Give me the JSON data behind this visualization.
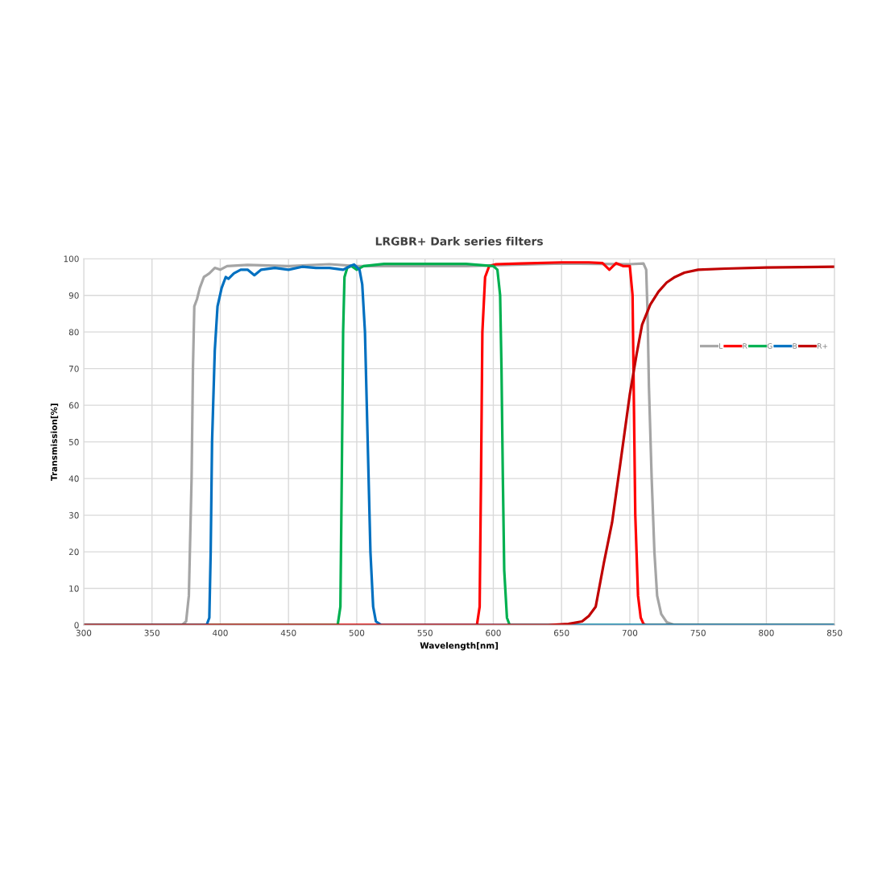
{
  "chart_data": {
    "type": "line",
    "title": "LRGBR+ Dark series filters",
    "xlabel": "Wavelength[nm]",
    "ylabel": "Transmission[%]",
    "xlim": [
      300,
      850
    ],
    "xticks": [
      300,
      350,
      400,
      450,
      500,
      550,
      600,
      650,
      700,
      750,
      800,
      850
    ],
    "ylim": [
      0,
      100
    ],
    "yticks": [
      0,
      10,
      20,
      30,
      40,
      50,
      60,
      70,
      80,
      90,
      100
    ],
    "grid": true,
    "legend": "right",
    "marker": "none",
    "line_style": "solid",
    "series": [
      {
        "name": "L",
        "color": "#a5a5a5",
        "x": [
          300,
          372,
          375,
          377,
          379,
          380,
          381,
          383,
          385,
          388,
          392,
          396,
          400,
          405,
          420,
          450,
          480,
          500,
          520,
          550,
          580,
          600,
          650,
          700,
          710,
          712,
          713,
          714,
          716,
          718,
          720,
          723,
          727,
          732,
          740,
          850
        ],
        "values": [
          0,
          0,
          1,
          8,
          40,
          70,
          87,
          89,
          92,
          95,
          96,
          97.5,
          97,
          98,
          98.3,
          98,
          98.5,
          98,
          98,
          98,
          98,
          98.2,
          98.7,
          98.5,
          98.7,
          97,
          85,
          65,
          40,
          20,
          8,
          3,
          0.8,
          0.1,
          0,
          0
        ]
      },
      {
        "name": "R",
        "color": "#ff0000",
        "x": [
          300,
          588,
          590,
          591,
          592,
          594,
          597,
          602,
          620,
          650,
          670,
          680,
          685,
          690,
          695,
          700,
          702,
          703,
          704,
          706,
          708,
          710,
          712,
          850
        ],
        "values": [
          0,
          0,
          5,
          40,
          80,
          95,
          98,
          98.5,
          98.7,
          99,
          99,
          98.8,
          97,
          98.8,
          98,
          98,
          90,
          60,
          30,
          8,
          2,
          0.3,
          0,
          0
        ]
      },
      {
        "name": "G",
        "color": "#00b050",
        "x": [
          300,
          486,
          488,
          489,
          490,
          491,
          493,
          496,
          500,
          505,
          520,
          550,
          580,
          600,
          603,
          605,
          606,
          607,
          608,
          610,
          612,
          850
        ],
        "values": [
          0,
          0,
          5,
          40,
          80,
          95,
          97.5,
          98,
          97,
          98,
          98.6,
          98.6,
          98.6,
          98,
          97,
          90,
          70,
          40,
          15,
          2,
          0,
          0
        ]
      },
      {
        "name": "B",
        "color": "#0070c0",
        "x": [
          300,
          390,
          392,
          393,
          394,
          396,
          398,
          401,
          404,
          406,
          410,
          415,
          420,
          425,
          430,
          440,
          450,
          460,
          470,
          480,
          490,
          495,
          498,
          502,
          504,
          506,
          508,
          510,
          512,
          514,
          518,
          850
        ],
        "values": [
          0,
          0,
          2,
          20,
          50,
          75,
          87,
          92,
          95,
          94.5,
          96,
          97,
          97,
          95.5,
          97,
          97.5,
          97,
          97.8,
          97.5,
          97.5,
          97,
          98,
          98.4,
          97,
          93,
          80,
          50,
          20,
          5,
          1,
          0,
          0
        ]
      },
      {
        "name": "R+",
        "color": "#c00000",
        "x": [
          300,
          640,
          655,
          665,
          670,
          675,
          681,
          687,
          693,
          700,
          705,
          709,
          715,
          721,
          727,
          733,
          740,
          750,
          770,
          800,
          850
        ],
        "values": [
          0,
          0,
          0.3,
          1,
          2.5,
          5,
          17,
          28,
          44,
          63,
          74,
          82,
          87.5,
          91,
          93.5,
          95,
          96.2,
          97,
          97.3,
          97.6,
          97.8
        ]
      }
    ]
  }
}
